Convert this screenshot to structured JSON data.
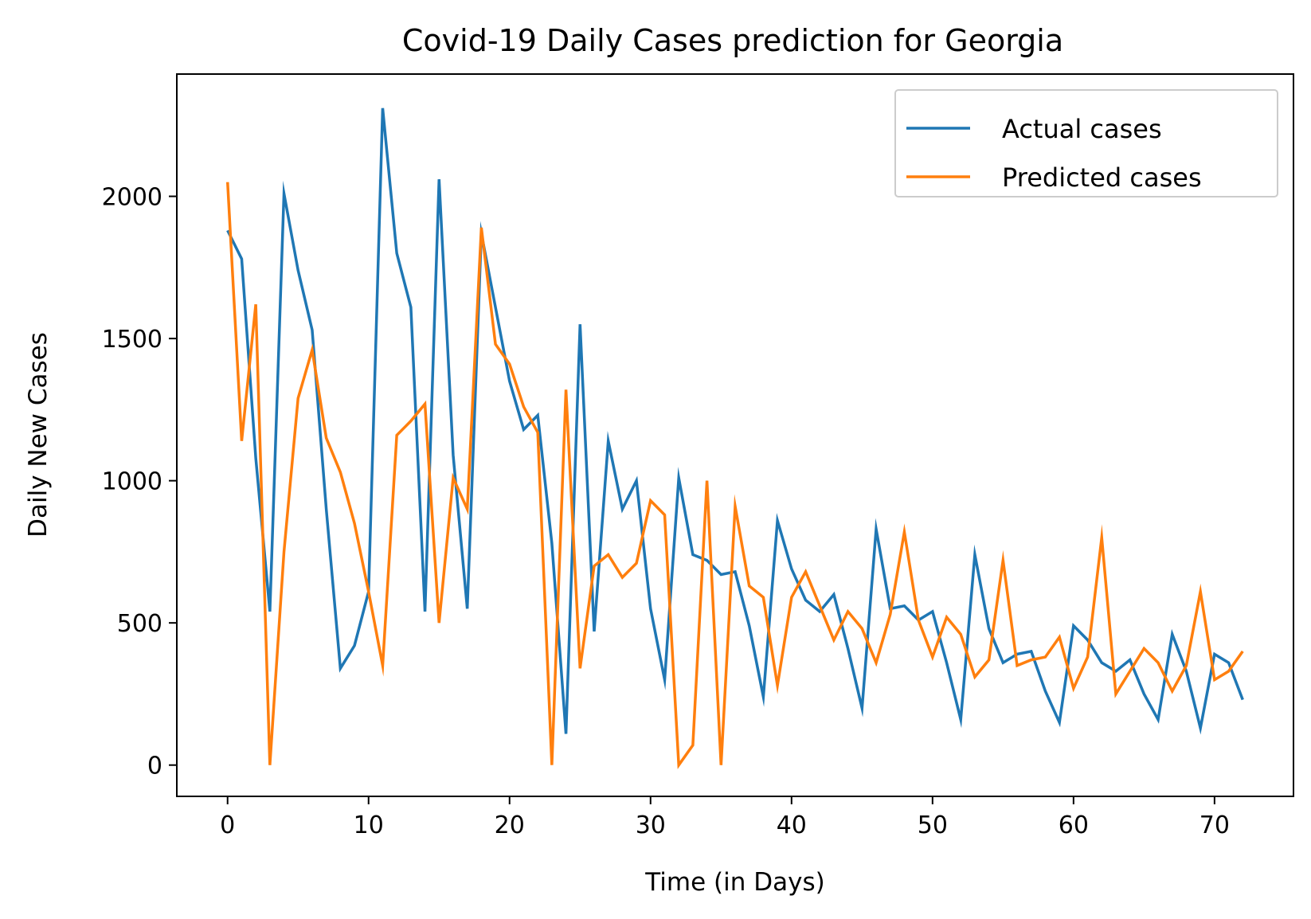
{
  "chart_data": {
    "type": "line",
    "title": "Covid-19 Daily Cases prediction for Georgia",
    "xlabel": "Time (in Days)",
    "ylabel": "Daily New Cases",
    "xlim": [
      -3.6,
      75.6
    ],
    "ylim": [
      -110,
      2430
    ],
    "xticks": [
      0,
      10,
      20,
      30,
      40,
      50,
      60,
      70
    ],
    "yticks": [
      0,
      500,
      1000,
      1500,
      2000
    ],
    "grid": false,
    "legend_position": "top-right",
    "series": [
      {
        "name": "Actual cases",
        "color": "#1f77b4",
        "values": [
          1880,
          1780,
          1080,
          540,
          2010,
          1740,
          1530,
          900,
          340,
          420,
          610,
          2310,
          1800,
          1610,
          540,
          2060,
          1090,
          550,
          1870,
          1610,
          1350,
          1180,
          1230,
          780,
          110,
          1550,
          470,
          1140,
          900,
          1000,
          550,
          300,
          1010,
          740,
          720,
          670,
          680,
          490,
          240,
          860,
          690,
          580,
          540,
          600,
          410,
          200,
          830,
          550,
          560,
          510,
          540,
          360,
          160,
          740,
          480,
          360,
          390,
          400,
          260,
          150,
          490,
          440,
          360,
          330,
          370,
          250,
          160,
          460,
          330,
          130,
          390,
          360,
          230
        ]
      },
      {
        "name": "Predicted cases",
        "color": "#ff7f0e",
        "values": [
          2050,
          1140,
          1620,
          0,
          750,
          1290,
          1460,
          1150,
          1030,
          850,
          610,
          350,
          1160,
          1210,
          1270,
          500,
          1010,
          900,
          1890,
          1480,
          1410,
          1260,
          1170,
          0,
          1320,
          340,
          700,
          740,
          660,
          710,
          930,
          880,
          0,
          70,
          1000,
          0,
          910,
          630,
          590,
          280,
          590,
          680,
          560,
          440,
          540,
          480,
          360,
          530,
          820,
          510,
          380,
          520,
          460,
          310,
          370,
          720,
          350,
          370,
          380,
          450,
          270,
          380,
          800,
          250,
          330,
          410,
          360,
          260,
          350,
          610,
          300,
          330,
          400
        ]
      }
    ]
  }
}
